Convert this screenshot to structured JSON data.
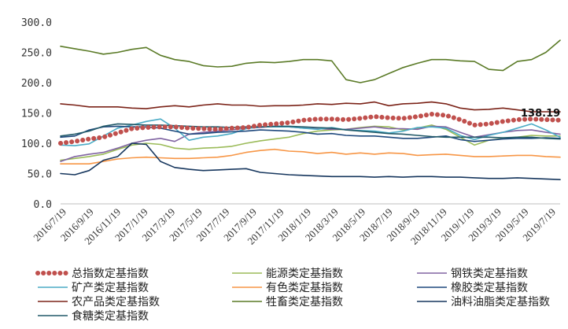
{
  "chart_data": {
    "type": "line",
    "ylim": [
      0,
      300
    ],
    "yticks": [
      "300.0",
      "250.0",
      "200.0",
      "150.0",
      "100.0",
      "50.0",
      "0.0"
    ],
    "x_tick_labels": [
      "2016/7/19",
      "2016/9/19",
      "2016/11/19",
      "2017/1/19",
      "2017/3/19",
      "2017/5/19",
      "2017/7/19",
      "2017/9/19",
      "2017/11/19",
      "2018/1/19",
      "2018/3/19",
      "2018/5/19",
      "2018/7/19",
      "2018/9/19",
      "2018/11/19",
      "2019/1/19",
      "2019/3/19",
      "2019/5/19",
      "2019/7/19"
    ],
    "last_value_label": "138.19",
    "series": [
      {
        "name": "总指数定基指数",
        "color": "#c0504d",
        "values": [
          100,
          103,
          107,
          110,
          117,
          124,
          126,
          127,
          127,
          125,
          124,
          123,
          125,
          126,
          130,
          132,
          134,
          138,
          140,
          140,
          139,
          141,
          144,
          142,
          141,
          144,
          148,
          146,
          139,
          130,
          132,
          136,
          139,
          140,
          139,
          138
        ]
      },
      {
        "name": "能源类定基指数",
        "color": "#9bbb59",
        "values": [
          72,
          75,
          78,
          82,
          90,
          97,
          100,
          98,
          92,
          90,
          92,
          93,
          95,
          100,
          104,
          107,
          110,
          116,
          120,
          122,
          123,
          126,
          128,
          127,
          122,
          125,
          130,
          123,
          110,
          97,
          105,
          108,
          110,
          113,
          112,
          112
        ]
      },
      {
        "name": "钢铁类定基指数",
        "color": "#8064a2",
        "values": [
          70,
          78,
          82,
          85,
          92,
          100,
          105,
          108,
          103,
          115,
          118,
          120,
          122,
          125,
          126,
          128,
          127,
          125,
          124,
          123,
          123,
          125,
          127,
          124,
          124,
          123,
          128,
          127,
          118,
          110,
          114,
          118,
          121,
          122,
          118,
          115
        ]
      },
      {
        "name": "矿产类定基指数",
        "color": "#4bacc6",
        "values": [
          97,
          96,
          99,
          112,
          125,
          130,
          136,
          140,
          125,
          105,
          110,
          112,
          116,
          124,
          127,
          127,
          127,
          125,
          123,
          126,
          122,
          121,
          120,
          117,
          120,
          126,
          127,
          125,
          113,
          106,
          113,
          118,
          125,
          132,
          122,
          110
        ]
      },
      {
        "name": "有色类定基指数",
        "color": "#f79646",
        "values": [
          66,
          66,
          66,
          70,
          74,
          76,
          77,
          76,
          75,
          75,
          76,
          77,
          80,
          85,
          88,
          90,
          87,
          86,
          83,
          85,
          82,
          84,
          82,
          84,
          83,
          80,
          81,
          82,
          80,
          78,
          78,
          79,
          80,
          80,
          78,
          77
        ]
      },
      {
        "name": "橡胶类定基指数",
        "color": "#1f497d",
        "values": [
          110,
          112,
          122,
          127,
          128,
          127,
          127,
          125,
          120,
          115,
          116,
          118,
          119,
          120,
          122,
          121,
          120,
          118,
          115,
          116,
          113,
          112,
          112,
          110,
          108,
          108,
          110,
          112,
          106,
          103,
          105,
          107,
          108,
          108,
          109,
          108
        ]
      },
      {
        "name": "农产品类定基指数",
        "color": "#7b2318",
        "values": [
          165,
          163,
          160,
          160,
          160,
          158,
          157,
          160,
          162,
          160,
          163,
          165,
          163,
          163,
          161,
          162,
          162,
          163,
          165,
          164,
          166,
          165,
          168,
          162,
          165,
          166,
          168,
          165,
          158,
          155,
          156,
          158,
          155,
          152,
          152,
          152
        ]
      },
      {
        "name": "牲畜类定基指数",
        "color": "#5a7a26",
        "values": [
          260,
          256,
          252,
          247,
          250,
          255,
          258,
          245,
          238,
          235,
          228,
          226,
          227,
          232,
          234,
          233,
          235,
          238,
          238,
          236,
          205,
          200,
          205,
          215,
          225,
          232,
          238,
          238,
          236,
          235,
          222,
          220,
          235,
          238,
          250,
          270
        ]
      },
      {
        "name": "油料油脂类定基指数",
        "color": "#17375e",
        "values": [
          50,
          48,
          55,
          72,
          78,
          100,
          98,
          70,
          60,
          57,
          55,
          56,
          57,
          58,
          52,
          50,
          48,
          47,
          46,
          45,
          45,
          45,
          44,
          45,
          44,
          45,
          45,
          44,
          44,
          43,
          42,
          42,
          43,
          42,
          41,
          40
        ]
      },
      {
        "name": "食糖类定基指数",
        "color": "#215968",
        "values": [
          112,
          115,
          120,
          128,
          132,
          131,
          130,
          130,
          129,
          128,
          127,
          127,
          126,
          127,
          127,
          128,
          128,
          127,
          126,
          125,
          122,
          120,
          118,
          116,
          115,
          113,
          111,
          110,
          110,
          110,
          110,
          109,
          110,
          110,
          108,
          107
        ]
      }
    ]
  }
}
